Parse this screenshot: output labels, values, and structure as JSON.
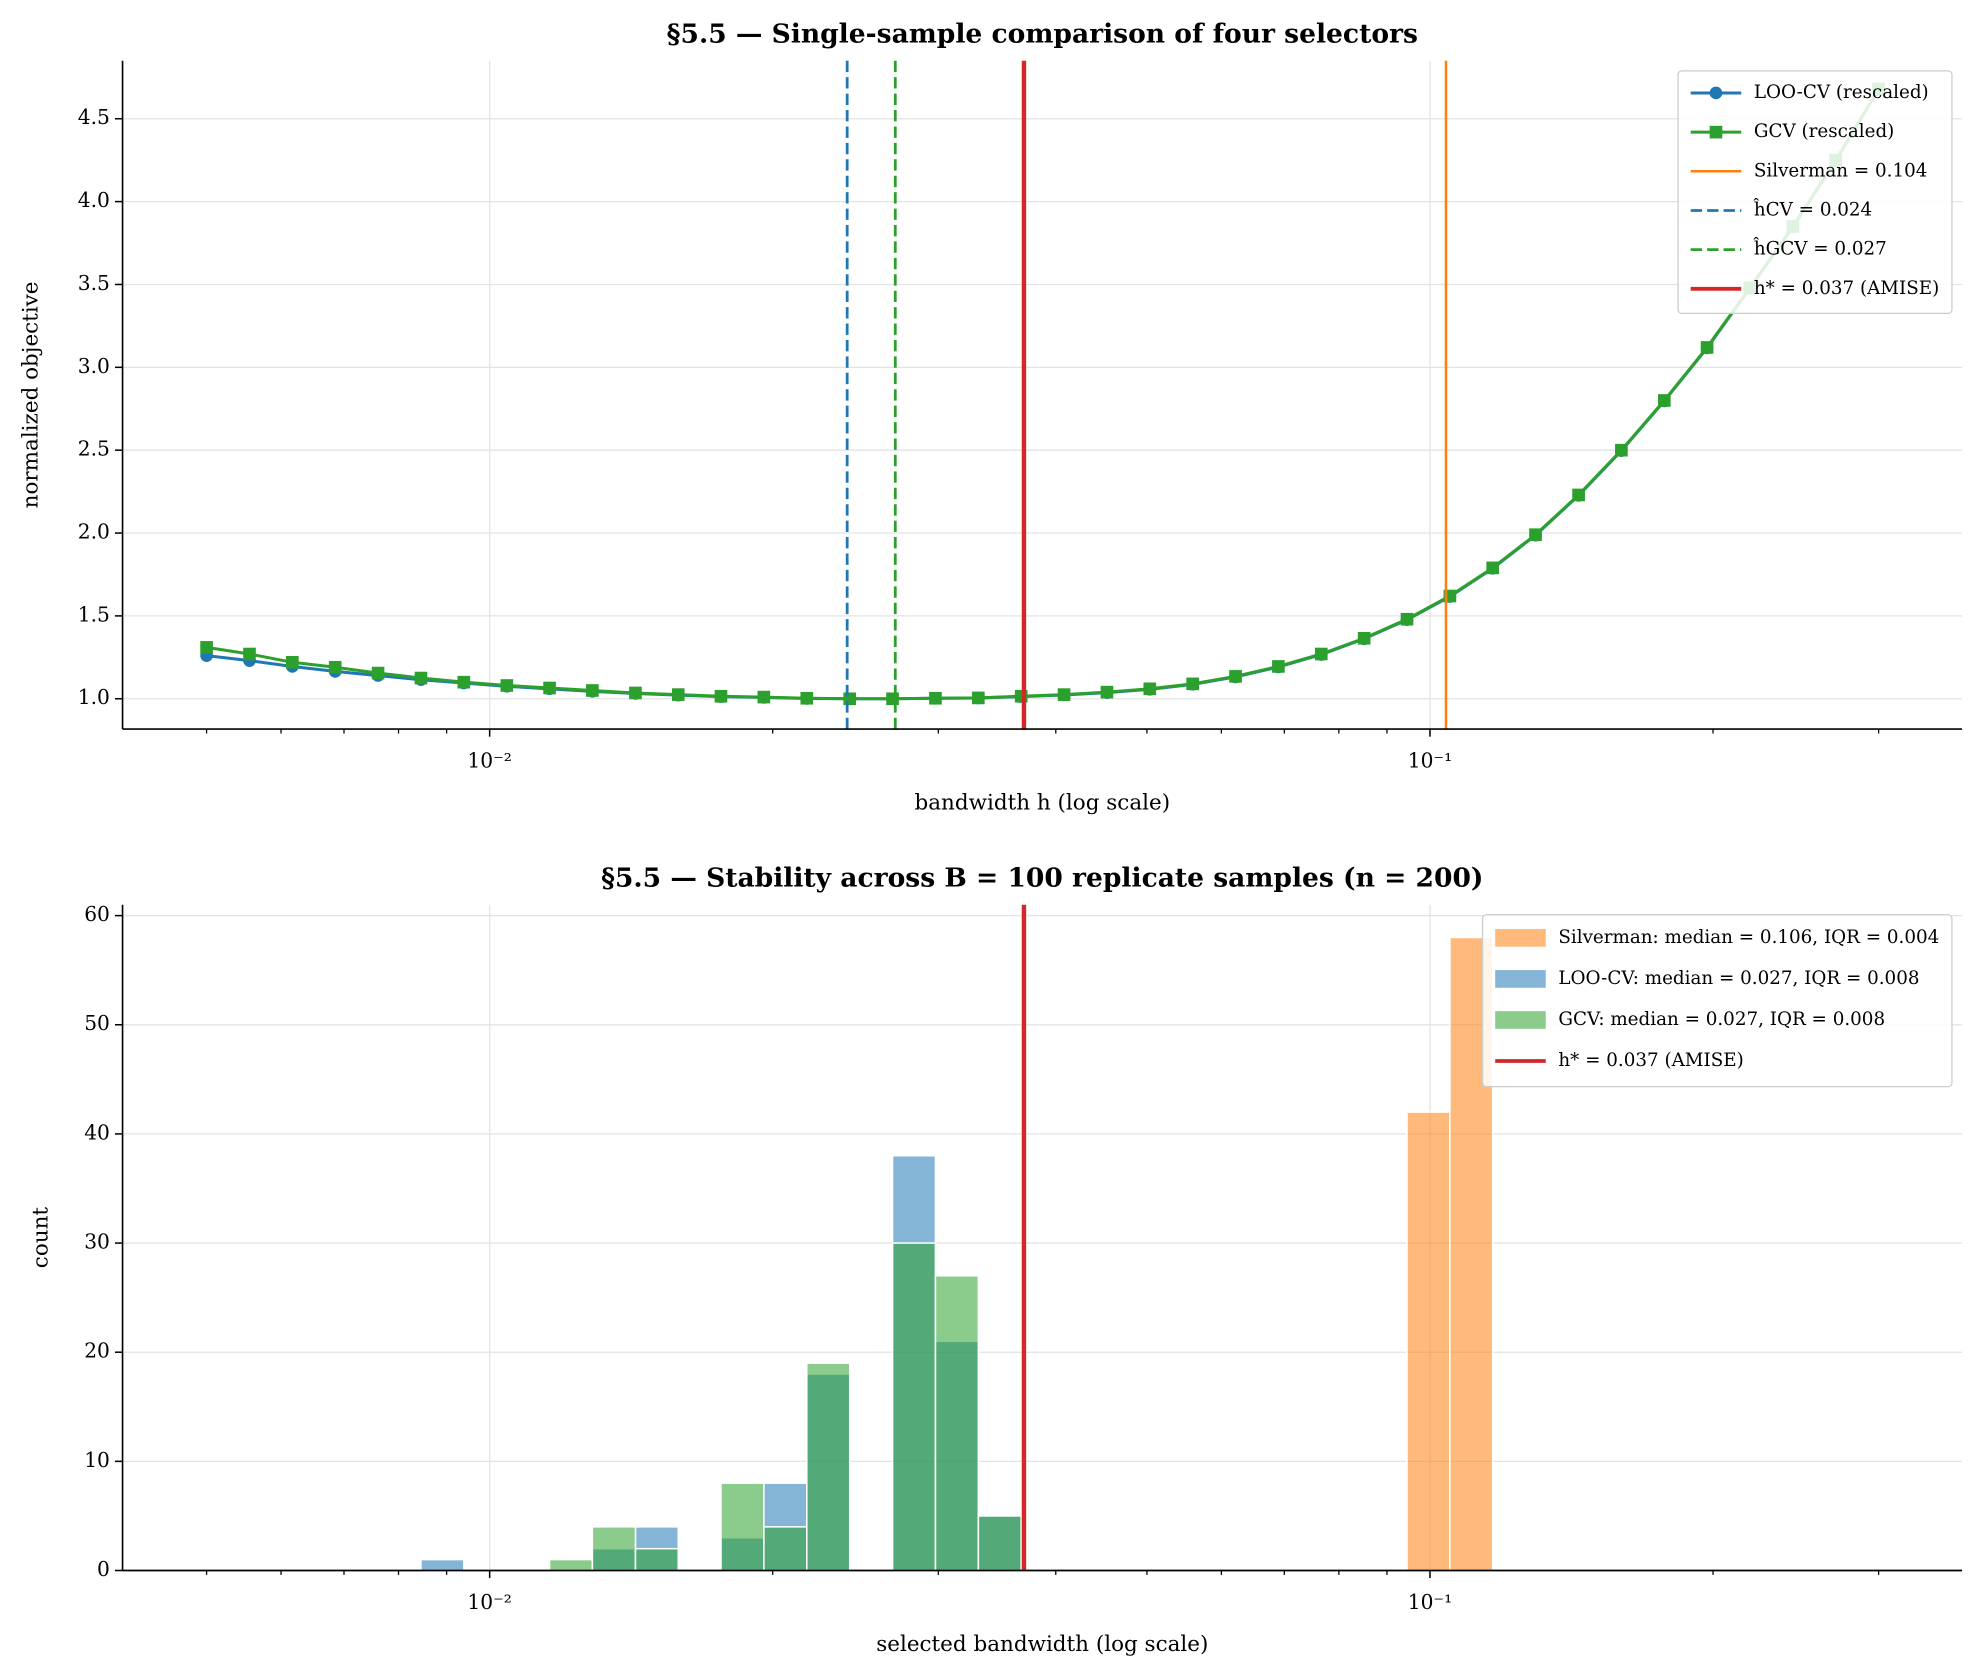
{
  "chart_data": [
    {
      "type": "line",
      "title": "§5.5 — Single-sample comparison of four selectors",
      "xlabel": "bandwidth h (log scale)",
      "ylabel": "normalized objective",
      "xscale": "log",
      "x": [
        0.005,
        0.005554,
        0.006168,
        0.006851,
        0.007609,
        0.008452,
        0.009387,
        0.01043,
        0.01158,
        0.01286,
        0.01429,
        0.01587,
        0.01762,
        0.01957,
        0.02174,
        0.02415,
        0.02682,
        0.02979,
        0.03309,
        0.03675,
        0.04082,
        0.04534,
        0.05035,
        0.05593,
        0.06212,
        0.06899,
        0.07663,
        0.08511,
        0.09453,
        0.105,
        0.1166,
        0.1295,
        0.1439,
        0.1598,
        0.1775,
        0.1971,
        0.2189,
        0.2432,
        0.2701,
        0.3
      ],
      "series": [
        {
          "name": "LOO-CV (rescaled)",
          "color": "#1f77b4",
          "marker": "circle",
          "values": [
            1.26,
            1.23,
            1.195,
            1.165,
            1.14,
            1.115,
            1.095,
            1.075,
            1.06,
            1.045,
            1.032,
            1.022,
            1.013,
            1.008,
            1.002,
            1.0,
            1.0,
            1.003,
            1.005,
            1.013,
            1.023,
            1.037,
            1.057,
            1.087,
            1.132,
            1.192,
            1.267,
            1.362,
            1.477,
            1.617,
            1.787,
            1.987,
            2.227,
            2.497,
            2.797,
            3.117,
            3.477,
            3.847,
            4.247,
            4.677
          ]
        },
        {
          "name": "GCV (rescaled)",
          "color": "#2ca02c",
          "marker": "square",
          "values": [
            1.31,
            1.27,
            1.22,
            1.19,
            1.155,
            1.125,
            1.1,
            1.08,
            1.065,
            1.05,
            1.035,
            1.025,
            1.015,
            1.01,
            1.003,
            1.0,
            1.0,
            1.003,
            1.005,
            1.015,
            1.025,
            1.04,
            1.06,
            1.09,
            1.135,
            1.195,
            1.27,
            1.365,
            1.48,
            1.62,
            1.79,
            1.99,
            2.23,
            2.5,
            2.8,
            3.12,
            3.48,
            3.85,
            4.25,
            4.68
          ]
        }
      ],
      "vlines": [
        {
          "name": "Silverman = 0.104",
          "value": 0.104,
          "color": "#ff7f0e",
          "dash": "solid",
          "width": 2
        },
        {
          "name": "ĥCV = 0.024",
          "value": 0.024,
          "color": "#1f77b4",
          "dash": "dashed",
          "width": 2.2
        },
        {
          "name": "ĥGCV = 0.027",
          "value": 0.027,
          "color": "#2ca02c",
          "dash": "dashed",
          "width": 2.2
        },
        {
          "name": "h* = 0.037 (AMISE)",
          "value": 0.037,
          "color": "#d62728",
          "dash": "solid",
          "width": 3.5
        }
      ],
      "xlim": [
        0.00407,
        0.368
      ],
      "xticks": [
        {
          "value": 0.01,
          "label": "10⁻²"
        },
        {
          "value": 0.1,
          "label": "10⁻¹"
        }
      ],
      "xminorticks": [
        0.005,
        0.006,
        0.007,
        0.008,
        0.009,
        0.02,
        0.03,
        0.04,
        0.05,
        0.06,
        0.07,
        0.08,
        0.09,
        0.2,
        0.3
      ],
      "ylim": [
        0.817,
        4.85
      ],
      "yticks": [
        {
          "value": 1,
          "label": "1.0"
        },
        1.5,
        {
          "value": 2,
          "label": "2.0"
        },
        2.5,
        {
          "value": 3,
          "label": "3.0"
        },
        3.5,
        {
          "value": 4,
          "label": "4.0"
        },
        4.5
      ],
      "grid": true,
      "legend": "upper right"
    },
    {
      "type": "histogram",
      "title": "§5.5 — Stability across B = 100 replicate samples (n = 200)",
      "xlabel": "selected bandwidth (log scale)",
      "ylabel": "count",
      "xscale": "log",
      "bins": [
        0.005,
        0.005554,
        0.006168,
        0.006851,
        0.007609,
        0.008452,
        0.009387,
        0.01043,
        0.01158,
        0.01286,
        0.01429,
        0.01587,
        0.01762,
        0.01957,
        0.02174,
        0.02415,
        0.02682,
        0.02979,
        0.03309,
        0.03675,
        0.04082,
        0.04534,
        0.05035,
        0.05593,
        0.06212,
        0.06899,
        0.07663,
        0.08511,
        0.09453,
        0.105,
        0.1166,
        0.1295,
        0.1439,
        0.1598,
        0.1775,
        0.1971,
        0.2189,
        0.2432,
        0.2701,
        0.3
      ],
      "series": [
        {
          "name": "Silverman: median = 0.106, IQR = 0.004",
          "color": "#ff7f0e",
          "values": [
            0,
            0,
            0,
            0,
            0,
            0,
            0,
            0,
            0,
            0,
            0,
            0,
            0,
            0,
            0,
            0,
            0,
            0,
            0,
            0,
            0,
            0,
            0,
            0,
            0,
            0,
            0,
            0,
            42,
            58,
            0,
            0,
            0,
            0,
            0,
            0,
            0,
            0,
            0
          ]
        },
        {
          "name": "LOO-CV: median = 0.027, IQR = 0.008",
          "color": "#1f77b4",
          "values": [
            0,
            0,
            0,
            0,
            0,
            1,
            0,
            0,
            0,
            2,
            4,
            0,
            3,
            8,
            18,
            0,
            38,
            21,
            5,
            0,
            0,
            0,
            0,
            0,
            0,
            0,
            0,
            0,
            0,
            0,
            0,
            0,
            0,
            0,
            0,
            0,
            0,
            0,
            0
          ]
        },
        {
          "name": "GCV: median = 0.027, IQR = 0.008",
          "color": "#2ca02c",
          "values": [
            0,
            0,
            0,
            0,
            0,
            0,
            0,
            0,
            1,
            4,
            2,
            0,
            8,
            4,
            19,
            0,
            30,
            27,
            5,
            0,
            0,
            0,
            0,
            0,
            0,
            0,
            0,
            0,
            0,
            0,
            0,
            0,
            0,
            0,
            0,
            0,
            0,
            0,
            0
          ]
        }
      ],
      "vlines": [
        {
          "name": "h* = 0.037 (AMISE)",
          "value": 0.037,
          "color": "#d62728",
          "dash": "solid",
          "width": 3.5
        }
      ],
      "xlim": [
        0.00407,
        0.368
      ],
      "xticks": [
        {
          "value": 0.01,
          "label": "10⁻²"
        },
        {
          "value": 0.1,
          "label": "10⁻¹"
        }
      ],
      "xminorticks": [
        0.005,
        0.006,
        0.007,
        0.008,
        0.009,
        0.02,
        0.03,
        0.04,
        0.05,
        0.06,
        0.07,
        0.08,
        0.09,
        0.2,
        0.3
      ],
      "ylim": [
        0,
        61
      ],
      "yticks": [
        0,
        10,
        20,
        30,
        40,
        50,
        60
      ],
      "grid": true,
      "legend": "upper right"
    }
  ]
}
